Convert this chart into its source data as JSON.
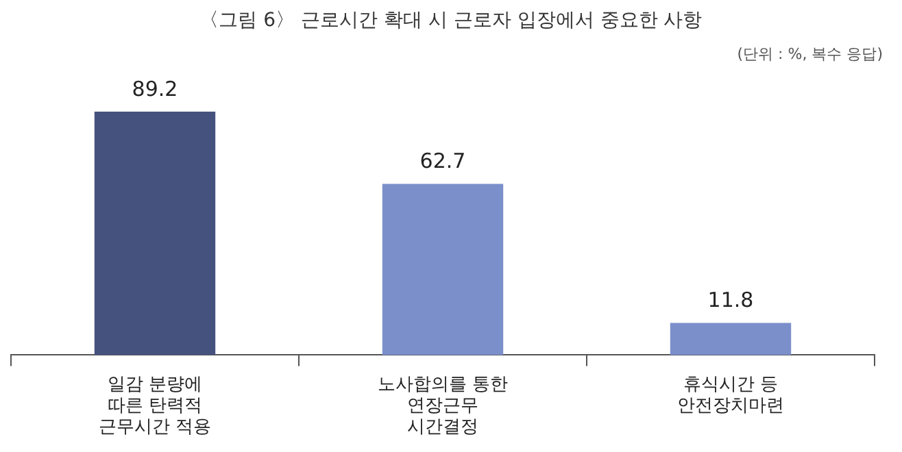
{
  "chart_data": {
    "type": "bar",
    "title": "〈그림 6〉 근로시간 확대 시 근로자 입장에서 중요한 사항",
    "subtitle": "(단위 : %, 복수 응답)",
    "categories": [
      "일감 분량에\n따른 탄력적\n근무시간 적용",
      "노사합의를 통한\n연장근무\n시간결정",
      "휴식시간 등\n안전장치마련"
    ],
    "values": [
      89.2,
      62.7,
      11.8
    ],
    "colors": [
      "#46527e",
      "#7b8fcb",
      "#7b8fcb"
    ],
    "data_labels": true,
    "grid": false,
    "legend": false
  }
}
